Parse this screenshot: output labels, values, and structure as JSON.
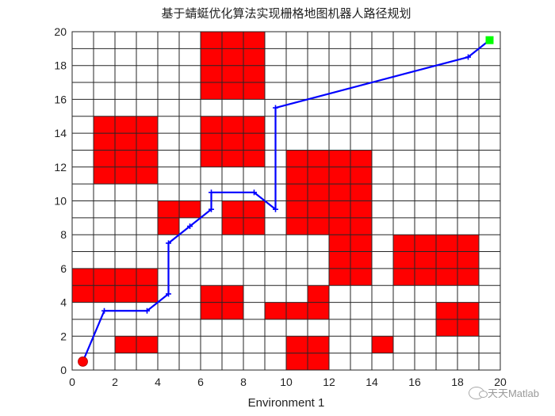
{
  "chart_data": {
    "type": "grid-map",
    "title": "基于蜻蜓优化算法实现栅格地图机器人路径规划",
    "xlabel": "Environment 1",
    "ylabel": "",
    "xlim": [
      0,
      20
    ],
    "ylim": [
      0,
      20
    ],
    "xticks": [
      "0",
      "2",
      "4",
      "6",
      "8",
      "10",
      "12",
      "14",
      "16",
      "18",
      "20"
    ],
    "yticks": [
      "0",
      "2",
      "4",
      "6",
      "8",
      "10",
      "12",
      "14",
      "16",
      "18",
      "20"
    ],
    "grid": true,
    "obstacle_color": "#ff0000",
    "path_color": "#0000ff",
    "start_color": "#ff0000",
    "goal_color": "#00ff00",
    "obstacles": [
      [
        6,
        19
      ],
      [
        7,
        19
      ],
      [
        8,
        19
      ],
      [
        6,
        18
      ],
      [
        7,
        18
      ],
      [
        8,
        18
      ],
      [
        6,
        17
      ],
      [
        7,
        17
      ],
      [
        8,
        17
      ],
      [
        6,
        16
      ],
      [
        7,
        16
      ],
      [
        8,
        16
      ],
      [
        1,
        14
      ],
      [
        2,
        14
      ],
      [
        3,
        14
      ],
      [
        1,
        13
      ],
      [
        2,
        13
      ],
      [
        3,
        13
      ],
      [
        1,
        12
      ],
      [
        2,
        12
      ],
      [
        3,
        12
      ],
      [
        1,
        11
      ],
      [
        2,
        11
      ],
      [
        3,
        11
      ],
      [
        6,
        14
      ],
      [
        7,
        14
      ],
      [
        8,
        14
      ],
      [
        6,
        13
      ],
      [
        7,
        13
      ],
      [
        8,
        13
      ],
      [
        6,
        12
      ],
      [
        7,
        12
      ],
      [
        8,
        12
      ],
      [
        10,
        12
      ],
      [
        11,
        12
      ],
      [
        12,
        12
      ],
      [
        13,
        12
      ],
      [
        10,
        11
      ],
      [
        11,
        11
      ],
      [
        12,
        11
      ],
      [
        13,
        11
      ],
      [
        10,
        10
      ],
      [
        11,
        10
      ],
      [
        12,
        10
      ],
      [
        13,
        10
      ],
      [
        10,
        9
      ],
      [
        11,
        9
      ],
      [
        12,
        9
      ],
      [
        13,
        9
      ],
      [
        10,
        8
      ],
      [
        11,
        8
      ],
      [
        12,
        8
      ],
      [
        13,
        8
      ],
      [
        12,
        7
      ],
      [
        13,
        7
      ],
      [
        12,
        6
      ],
      [
        13,
        6
      ],
      [
        12,
        5
      ],
      [
        13,
        5
      ],
      [
        4,
        9
      ],
      [
        5,
        9
      ],
      [
        4,
        8
      ],
      [
        7,
        9
      ],
      [
        8,
        9
      ],
      [
        7,
        8
      ],
      [
        8,
        8
      ],
      [
        15,
        7
      ],
      [
        16,
        7
      ],
      [
        17,
        7
      ],
      [
        18,
        7
      ],
      [
        15,
        6
      ],
      [
        16,
        6
      ],
      [
        17,
        6
      ],
      [
        18,
        6
      ],
      [
        15,
        5
      ],
      [
        16,
        5
      ],
      [
        17,
        5
      ],
      [
        18,
        5
      ],
      [
        0,
        5
      ],
      [
        1,
        5
      ],
      [
        2,
        5
      ],
      [
        3,
        5
      ],
      [
        0,
        4
      ],
      [
        1,
        4
      ],
      [
        2,
        4
      ],
      [
        3,
        4
      ],
      [
        6,
        4
      ],
      [
        7,
        4
      ],
      [
        6,
        3
      ],
      [
        7,
        3
      ],
      [
        11,
        4
      ],
      [
        9,
        3
      ],
      [
        10,
        3
      ],
      [
        11,
        3
      ],
      [
        17,
        3
      ],
      [
        18,
        3
      ],
      [
        17,
        2
      ],
      [
        18,
        2
      ],
      [
        2,
        1
      ],
      [
        3,
        1
      ],
      [
        14,
        1
      ],
      [
        10,
        1
      ],
      [
        11,
        1
      ],
      [
        10,
        0
      ],
      [
        11,
        0
      ]
    ],
    "series": [
      {
        "x": [
          0.5,
          1.5,
          3.5,
          4.5,
          4.5,
          5.5,
          6.5,
          6.5,
          8.5,
          9.5,
          9.5,
          18.5,
          19.5
        ],
        "y": [
          0.5,
          3.5,
          3.5,
          4.5,
          7.5,
          8.5,
          9.5,
          10.5,
          10.5,
          9.5,
          15.5,
          18.5,
          19.5
        ]
      }
    ],
    "start": [
      0.5,
      0.5
    ],
    "goal": [
      19.5,
      19.5
    ]
  },
  "watermark": "天天Matlab"
}
